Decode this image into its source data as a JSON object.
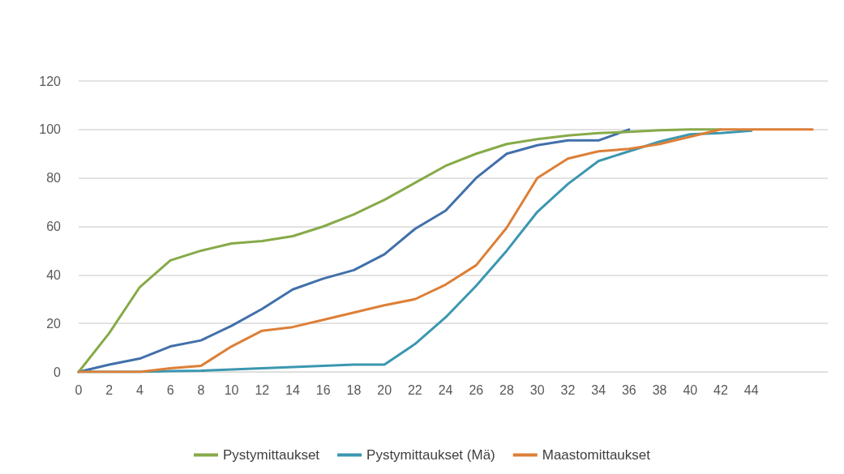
{
  "chart_data": {
    "type": "line",
    "xlim": [
      0,
      49
    ],
    "xticks": [
      0,
      2,
      4,
      6,
      8,
      10,
      12,
      14,
      16,
      18,
      20,
      22,
      24,
      26,
      28,
      30,
      32,
      34,
      36,
      38,
      40,
      42,
      44
    ],
    "ylim": [
      0,
      120
    ],
    "yticks": [
      0,
      20,
      40,
      60,
      80,
      100,
      120
    ],
    "grid": "y",
    "legend": "bottom",
    "marker": "none",
    "series": [
      {
        "color": "#4170aa",
        "x": [
          0,
          2,
          4,
          6,
          8,
          10,
          12,
          14,
          16,
          18,
          20,
          22,
          24,
          26,
          28,
          30,
          32,
          34,
          36
        ],
        "values": [
          0,
          3,
          5.5,
          10.5,
          13,
          19,
          26,
          34,
          38.5,
          42,
          48.5,
          59,
          66.5,
          80,
          90,
          93.5,
          95.5,
          95.5,
          100
        ]
      },
      {
        "name": "Pystymittaukset",
        "color": "#86aa48",
        "x": [
          0,
          2,
          4,
          6,
          8,
          10,
          12,
          14,
          16,
          18,
          20,
          22,
          24,
          26,
          28,
          30,
          32,
          34,
          36,
          38,
          40,
          42
        ],
        "values": [
          0,
          16,
          35,
          46,
          50,
          53,
          54,
          56,
          60,
          65,
          71,
          78,
          85,
          90,
          94,
          96,
          97.5,
          98.5,
          99,
          99.7,
          100,
          100
        ]
      },
      {
        "name": "Pystymittaukset (Mä)",
        "color": "#3b97b0",
        "x": [
          0,
          2,
          4,
          6,
          8,
          10,
          12,
          14,
          16,
          18,
          20,
          22,
          24,
          26,
          28,
          30,
          32,
          34,
          36,
          38,
          40,
          42,
          44
        ],
        "values": [
          0,
          0,
          0,
          0.3,
          0.5,
          1,
          1.5,
          2,
          2.5,
          3,
          3,
          11.5,
          22.5,
          35.5,
          50,
          66,
          77.5,
          87,
          91,
          95,
          98,
          98.5,
          99.5
        ]
      },
      {
        "name": "Maastomittaukset",
        "color": "#dd7f37",
        "x": [
          0,
          2,
          4,
          6,
          8,
          10,
          12,
          14,
          16,
          18,
          20,
          22,
          24,
          26,
          28,
          30,
          32,
          34,
          36,
          38,
          40,
          42,
          44,
          46,
          48
        ],
        "values": [
          0,
          0,
          0,
          1.5,
          2.5,
          10.5,
          17,
          18.5,
          21.5,
          24.5,
          27.5,
          30,
          36,
          44,
          59.5,
          80,
          88,
          91,
          92,
          94,
          97,
          100,
          100,
          100,
          100
        ]
      }
    ]
  }
}
